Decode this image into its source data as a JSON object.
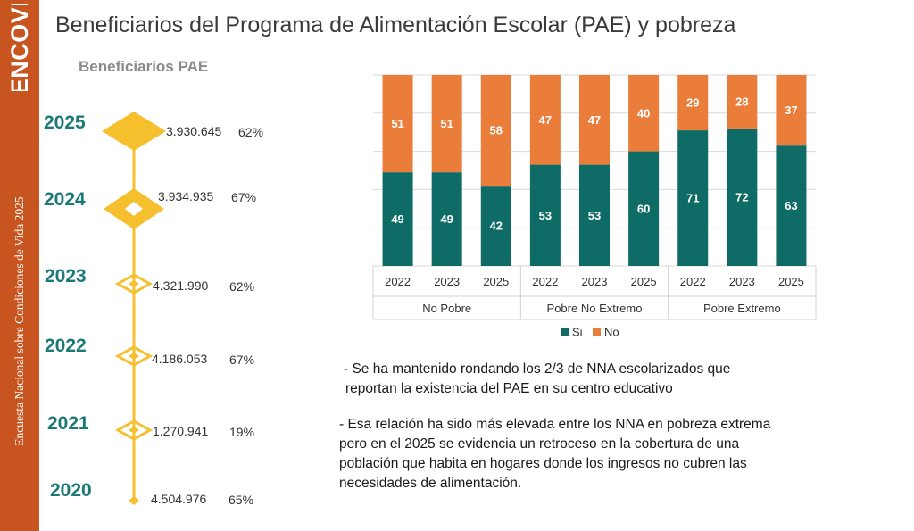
{
  "brand": {
    "logo_text": "ENCOVI"
  },
  "sidebar": {
    "vertical_text": "Encuesta Nacional sobre Condiciones de Vida 2025"
  },
  "header": {
    "title": "Beneficiarios del Programa de Alimentación Escolar (PAE) y pobreza"
  },
  "timeline": {
    "subtitle": "Beneficiarios PAE",
    "items": [
      {
        "year": "2025",
        "value": "3.930.645",
        "pct": "62%"
      },
      {
        "year": "2024",
        "value": "3.934.935",
        "pct": "67%"
      },
      {
        "year": "2023",
        "value": "4.321.990",
        "pct": "62%"
      },
      {
        "year": "2022",
        "value": "4.186.053",
        "pct": "67%"
      },
      {
        "year": "2021",
        "value": "1.270.941",
        "pct": "19%"
      },
      {
        "year": "2020",
        "value": "4.504.976",
        "pct": "65%"
      }
    ]
  },
  "chart_data": {
    "type": "bar",
    "stacked": true,
    "orientation": "vertical",
    "categories": [
      "2022",
      "2023",
      "2025",
      "2022",
      "2023",
      "2025",
      "2022",
      "2023",
      "2025"
    ],
    "groups": [
      {
        "label": "No Pobre",
        "categories": [
          "2022",
          "2023",
          "2025"
        ]
      },
      {
        "label": "Pobre No Extremo",
        "categories": [
          "2022",
          "2023",
          "2025"
        ]
      },
      {
        "label": "Pobre Extremo",
        "categories": [
          "2022",
          "2023",
          "2025"
        ]
      }
    ],
    "series": [
      {
        "name": "Si",
        "color": "#0e6b66",
        "values": [
          49,
          49,
          42,
          53,
          53,
          60,
          71,
          72,
          63
        ]
      },
      {
        "name": "No",
        "color": "#ea7d3a",
        "values": [
          51,
          51,
          58,
          47,
          47,
          40,
          29,
          28,
          37
        ]
      }
    ],
    "ylim": [
      0,
      100
    ],
    "grid": true,
    "data_labels": true,
    "legend_position": "bottom"
  },
  "colors": {
    "sidebar": "#c8541f",
    "accent_yellow": "#f6bf2e",
    "year_teal": "#1b7a78"
  },
  "bullets": [
    {
      "line1": "- Se ha mantenido rondando los 2/3 de NNA escolarizados que",
      "line2": "reportan la existencia del PAE  en su centro educativo"
    },
    {
      "line1": "-  Esa relación ha sido más elevada entre los NNA en pobreza extrema",
      "line2": "pero en el 2025 se evidencia un retroceso en la cobertura de una",
      "line3": "población que habita en hogares donde los ingresos no cubren las",
      "line4": "necesidades de alimentación."
    }
  ]
}
